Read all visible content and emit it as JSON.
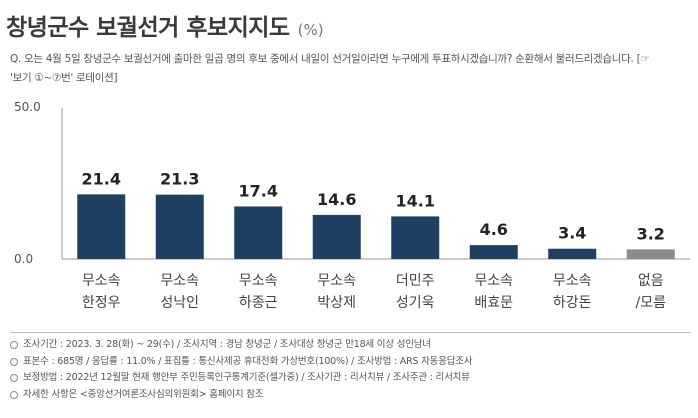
{
  "header": {
    "title": "창녕군수 보궐선거 후보지지도",
    "unit": "(%)"
  },
  "question": "Q. 오는 4월 5일 창녕군수 보궐선거에 출마한 일곱 명의 후보 중에서 내일이 선거일이라면 누구에게 투표하시겠습니까? 순환해서 불러드리겠습니다. [☞ '보기 ①~⑦번' 로테이션]",
  "chart_data": {
    "type": "bar",
    "categories": [
      "무소속 한정우",
      "무소속 성낙인",
      "무소속 하종근",
      "무소속 박상제",
      "더민주 성기욱",
      "무소속 배효문",
      "무소속 하강돈",
      "없음/모름"
    ],
    "category_lines": [
      [
        "무소속",
        "한정우"
      ],
      [
        "무소속",
        "성낙인"
      ],
      [
        "무소속",
        "하종근"
      ],
      [
        "무소속",
        "박상제"
      ],
      [
        "더민주",
        "성기욱"
      ],
      [
        "무소속",
        "배효문"
      ],
      [
        "무소속",
        "하강돈"
      ],
      [
        "없음",
        "/모름"
      ]
    ],
    "values": [
      21.4,
      21.3,
      17.4,
      14.6,
      14.1,
      4.6,
      3.4,
      3.2
    ],
    "value_labels": [
      "21.4",
      "21.3",
      "17.4",
      "14.6",
      "14.1",
      "4.6",
      "3.4",
      "3.2"
    ],
    "ylim": [
      0,
      50
    ],
    "yticks": [
      "0.0",
      "50.0"
    ],
    "colors": {
      "bar": "#1f3f63",
      "bar_last": "#8c8c8c",
      "axis": "#999999"
    }
  },
  "notes": [
    "조사기간 : 2023. 3. 28(화) ~ 29(수) / 조사지역 : 경남 창녕군 / 조사대상 창녕군 만18세 이상 성인남녀",
    "표본수 : 685명 / 응답률 : 11.0% / 표집틀 : 통신사제공 휴대전화 가상번호(100%) / 조사방법 : ARS 자동응답조사",
    "보정방법 : 2022년 12월말 현재 행안부 주민등록인구통계기준(셀가중) / 조사기관 : 리서치뷰 / 조사주관 : 리서치뷰",
    "자세한 사항은 <중앙선거여론조사심의위원회> 홈페이지 참조"
  ]
}
